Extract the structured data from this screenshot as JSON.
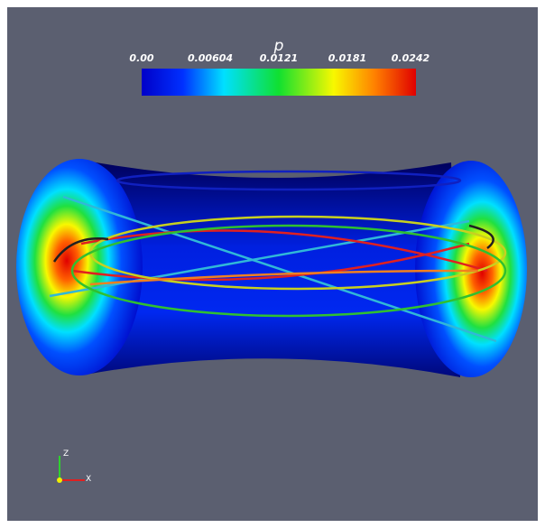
{
  "colorbar": {
    "title": "p",
    "tick_labels": [
      "0.00",
      "0.00604",
      "0.0121",
      "0.0181",
      "0.0242"
    ]
  },
  "orientation_axes": {
    "z_label": "Z",
    "x_label": "X"
  }
}
